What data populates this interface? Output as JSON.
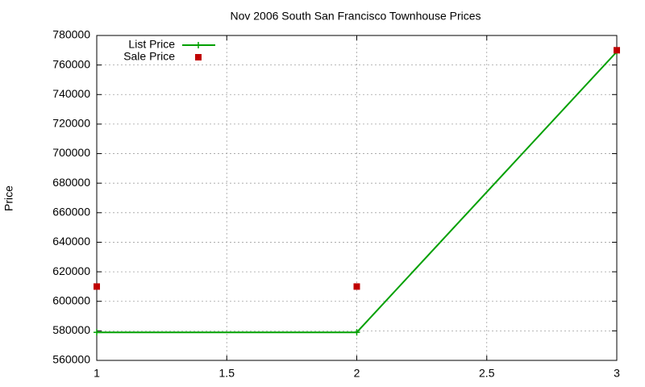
{
  "chart_data": {
    "type": "line",
    "title": "Nov 2006 South San Francisco Townhouse Prices",
    "y_label": "Price",
    "x": [
      1,
      2,
      3
    ],
    "series": [
      {
        "name": "List Price",
        "color": "#00a000",
        "values": [
          579000,
          579000,
          769000
        ],
        "style": "line"
      },
      {
        "name": "Sale Price",
        "color": "#c00000",
        "values": [
          610000,
          610000,
          770000
        ],
        "style": "points"
      }
    ],
    "xlim": [
      1,
      3
    ],
    "xticks": [
      1,
      1.5,
      2,
      2.5,
      3
    ],
    "ylim": [
      560000,
      780000
    ],
    "yticks": [
      560000,
      580000,
      600000,
      620000,
      640000,
      660000,
      680000,
      700000,
      720000,
      740000,
      760000,
      780000
    ],
    "grid": true,
    "legend": "top-left"
  }
}
